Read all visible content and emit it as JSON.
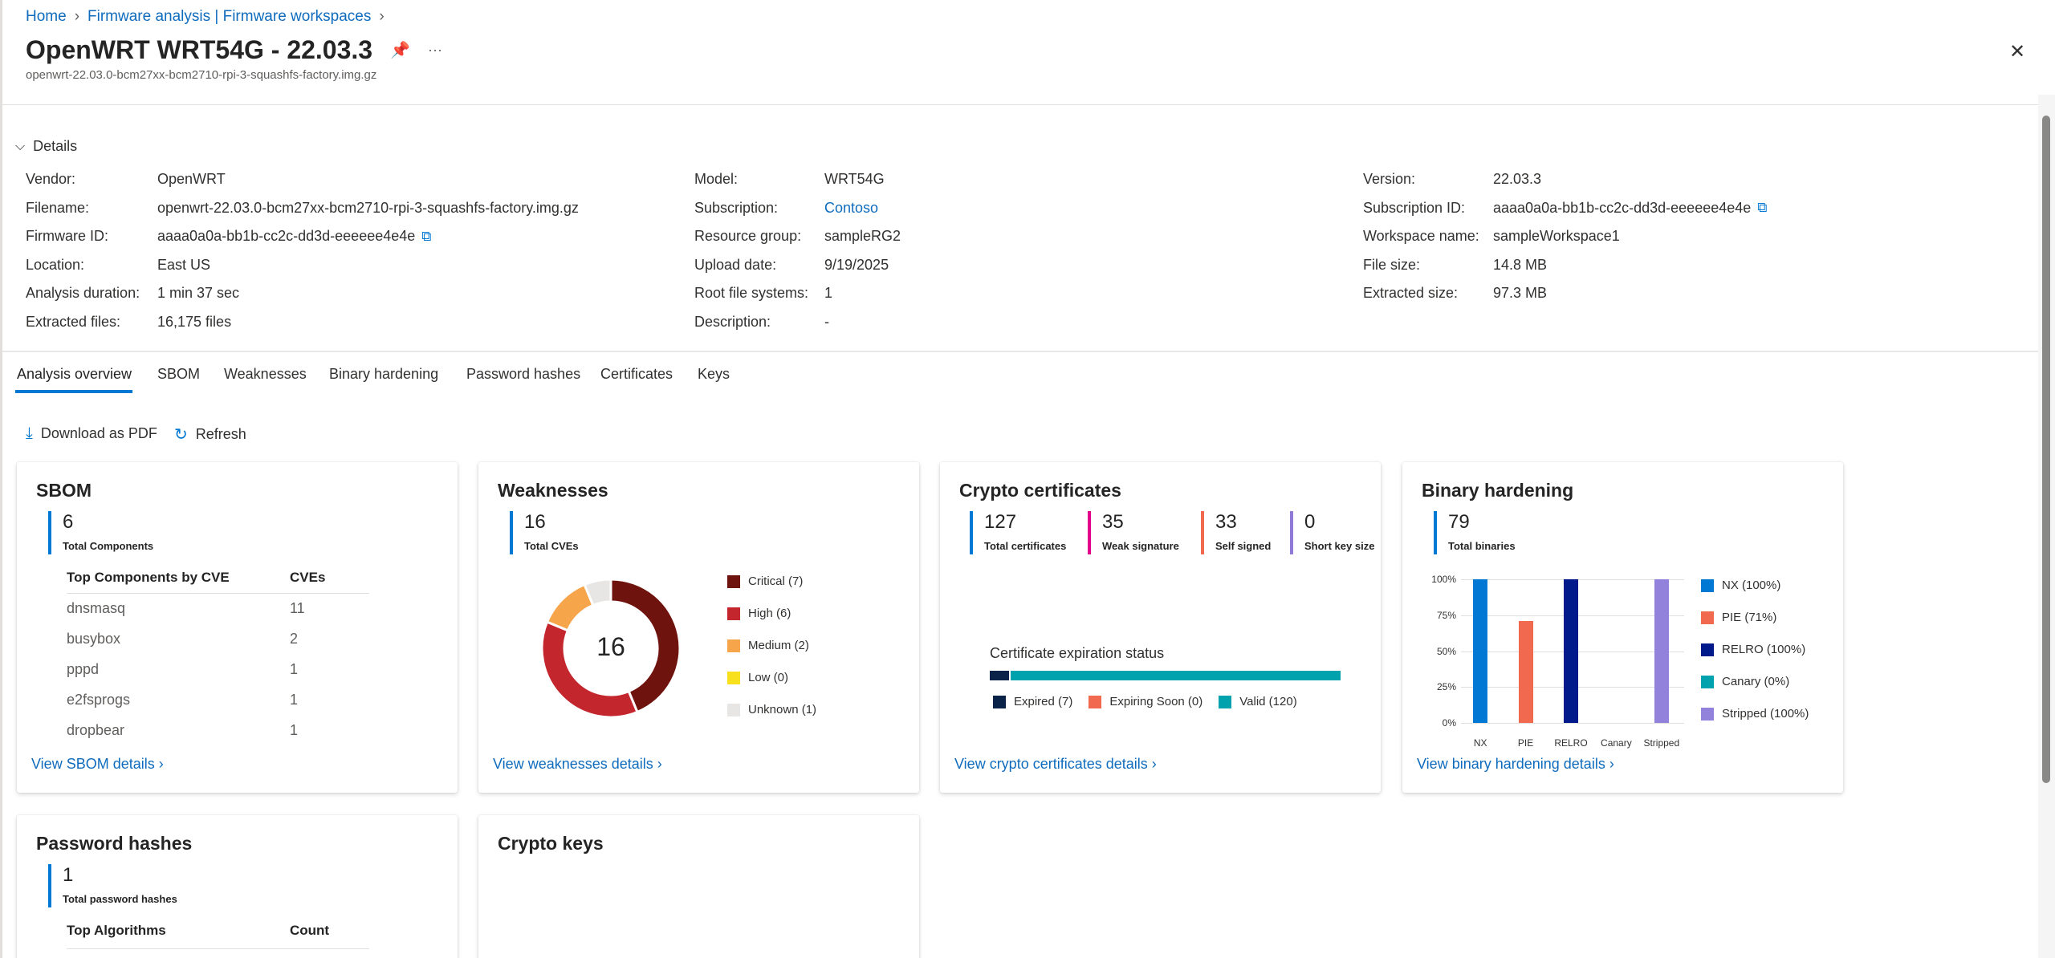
{
  "breadcrumb": {
    "home": "Home",
    "parent": "Firmware analysis | Firmware workspaces"
  },
  "header": {
    "title": "OpenWRT WRT54G - 22.03.3",
    "subtitle": "openwrt-22.03.0-bcm27xx-bcm2710-rpi-3-squashfs-factory.img.gz",
    "more": "···",
    "close": "✕"
  },
  "details": {
    "heading": "Details",
    "col1": [
      {
        "label": "Vendor:",
        "value": "OpenWRT"
      },
      {
        "label": "Filename:",
        "value": "openwrt-22.03.0-bcm27xx-bcm2710-rpi-3-squashfs-factory.img.gz"
      },
      {
        "label": "Firmware ID:",
        "value": "aaaa0a0a-bb1b-cc2c-dd3d-eeeeee4e4e"
      },
      {
        "label": "Location:",
        "value": "East US"
      },
      {
        "label": "Analysis duration:",
        "value": "1 min 37 sec"
      },
      {
        "label": "Extracted files:",
        "value": "16,175 files"
      }
    ],
    "col2": [
      {
        "label": "Model:",
        "value": "WRT54G"
      },
      {
        "label": "Subscription:",
        "value": "Contoso"
      },
      {
        "label": "Resource group:",
        "value": "sampleRG2"
      },
      {
        "label": "Upload date:",
        "value": "9/19/2025"
      },
      {
        "label": "Root file systems:",
        "value": "1"
      },
      {
        "label": "Description:",
        "value": "-"
      }
    ],
    "col3": [
      {
        "label": "Version:",
        "value": "22.03.3"
      },
      {
        "label": "Subscription ID:",
        "value": "aaaa0a0a-bb1b-cc2c-dd3d-eeeeee4e4e"
      },
      {
        "label": "Workspace name:",
        "value": "sampleWorkspace1"
      },
      {
        "label": "File size:",
        "value": "14.8 MB"
      },
      {
        "label": "Extracted size:",
        "value": "97.3 MB"
      }
    ]
  },
  "tabs": [
    "Analysis overview",
    "SBOM",
    "Weaknesses",
    "Binary hardening",
    "Password hashes",
    "Certificates",
    "Keys"
  ],
  "toolbar": {
    "download": "Download as PDF",
    "refresh": "Refresh"
  },
  "sbom": {
    "title": "SBOM",
    "count": "6",
    "count_label": "Total Components",
    "col1": "Top Components by CVE",
    "col2": "CVEs",
    "rows": [
      {
        "name": "dnsmasq",
        "cves": "11"
      },
      {
        "name": "busybox",
        "cves": "2"
      },
      {
        "name": "pppd",
        "cves": "1"
      },
      {
        "name": "e2fsprogs",
        "cves": "1"
      },
      {
        "name": "dropbear",
        "cves": "1"
      }
    ],
    "link": "View SBOM details"
  },
  "weaknesses": {
    "title": "Weaknesses",
    "count": "16",
    "count_label": "Total CVEs",
    "center": "16",
    "link": "View weaknesses details",
    "chart_data": {
      "type": "pie",
      "categories": [
        "Critical",
        "High",
        "Medium",
        "Low",
        "Unknown"
      ],
      "values": [
        7,
        6,
        2,
        0,
        1
      ],
      "colors": [
        "#6e130d",
        "#c4262e",
        "#f7a54a",
        "#f9e01c",
        "#e8e6e4"
      ],
      "legend": [
        "Critical (7)",
        "High (6)",
        "Medium (2)",
        "Low (0)",
        "Unknown (1)"
      ]
    }
  },
  "certificates": {
    "title": "Crypto certificates",
    "metrics": [
      {
        "value": "127",
        "label": "Total certificates",
        "color": "#0078d4"
      },
      {
        "value": "35",
        "label": "Weak signature",
        "color": "#e3008c"
      },
      {
        "value": "33",
        "label": "Self signed",
        "color": "#f1694e"
      },
      {
        "value": "0",
        "label": "Short key size",
        "color": "#8f7ad8"
      }
    ],
    "expiration_title": "Certificate expiration status",
    "chart_data": {
      "type": "bar",
      "categories": [
        "Expired",
        "Expiring Soon",
        "Valid"
      ],
      "values": [
        7,
        0,
        120
      ],
      "colors": [
        "#0b2249",
        "#f1694e",
        "#00a2ad"
      ],
      "legend": [
        "Expired (7)",
        "Expiring Soon (0)",
        "Valid (120)"
      ]
    },
    "link": "View crypto certificates details"
  },
  "binary": {
    "title": "Binary hardening",
    "count": "79",
    "count_label": "Total binaries",
    "link": "View binary hardening details",
    "chart_data": {
      "type": "bar",
      "categories": [
        "NX",
        "PIE",
        "RELRO",
        "Canary",
        "Stripped"
      ],
      "values": [
        100,
        71,
        100,
        0,
        100
      ],
      "colors": [
        "#0078d4",
        "#f1694e",
        "#001a8c",
        "#00a2ad",
        "#9382dc"
      ],
      "yticks": [
        "100%",
        "75%",
        "50%",
        "25%",
        "0%"
      ],
      "ylim": [
        0,
        100
      ],
      "grid": true,
      "legend_position": "right",
      "legend": [
        "NX (100%)",
        "PIE (71%)",
        "RELRO (100%)",
        "Canary (0%)",
        "Stripped (100%)"
      ]
    }
  },
  "passwords": {
    "title": "Password hashes",
    "count": "1",
    "count_label": "Total password hashes",
    "col1": "Top Algorithms",
    "col2": "Count"
  },
  "keys": {
    "title": "Crypto keys"
  }
}
